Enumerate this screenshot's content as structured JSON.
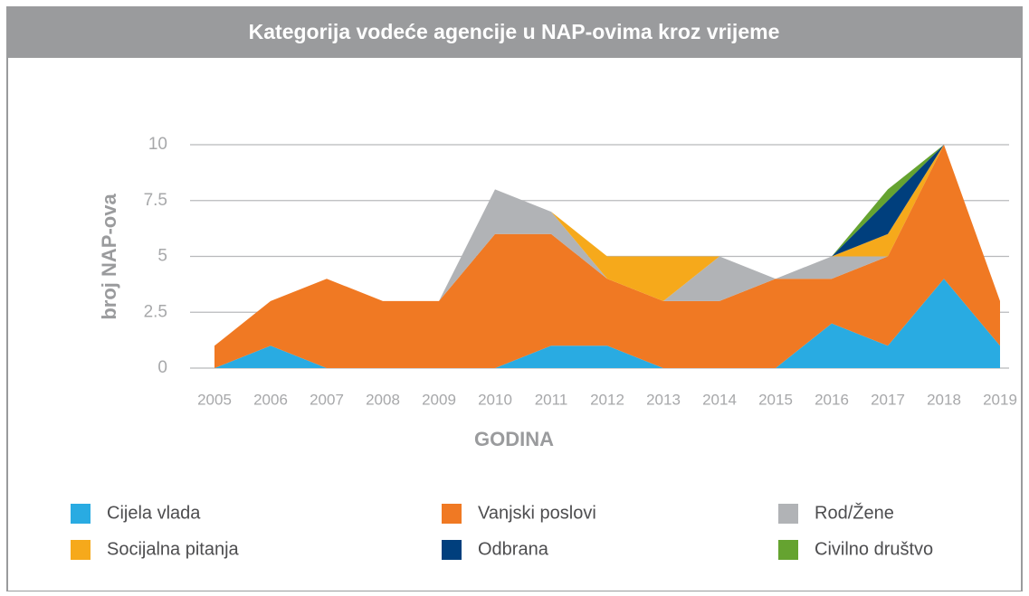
{
  "chart_data": {
    "type": "stacked-area",
    "title": "Kategorija vodeće agencije u NAP-ovima kroz vrijeme",
    "xlabel": "GODINA",
    "ylabel": "broj NAP-ova",
    "categories": [
      "2005",
      "2006",
      "2007",
      "2008",
      "2009",
      "2010",
      "2011",
      "2012",
      "2013",
      "2014",
      "2015",
      "2016",
      "2017",
      "2018",
      "2019"
    ],
    "ylim": [
      0,
      10
    ],
    "yticks": [
      0,
      2.5,
      5,
      7.5,
      10
    ],
    "grid": true,
    "series": [
      {
        "name": "Cijela vlada",
        "color": "#29abe2",
        "values": [
          0,
          1,
          0,
          0,
          0,
          0,
          1,
          1,
          0,
          0,
          0,
          2,
          1,
          4,
          1
        ]
      },
      {
        "name": "Vanjski poslovi",
        "color": "#f07923",
        "values": [
          1,
          2,
          4,
          3,
          3,
          6,
          5,
          3,
          3,
          3,
          4,
          2,
          4,
          6,
          2
        ]
      },
      {
        "name": "Rod/Žene",
        "color": "#b1b3b6",
        "values": [
          0,
          0,
          0,
          0,
          0,
          2,
          1,
          0,
          0,
          2,
          0,
          1,
          0,
          0,
          0
        ]
      },
      {
        "name": "Socijalna pitanja",
        "color": "#f6a91b",
        "values": [
          0,
          0,
          0,
          0,
          0,
          0,
          0,
          1,
          2,
          0,
          0,
          0,
          1,
          0,
          0
        ]
      },
      {
        "name": "Odbrana",
        "color": "#003f7d",
        "values": [
          0,
          0,
          0,
          0,
          0,
          0,
          0,
          0,
          0,
          0,
          0,
          0,
          1.5,
          0,
          0
        ]
      },
      {
        "name": "Civilno društvo",
        "color": "#65a330",
        "values": [
          0,
          0,
          0,
          0,
          0,
          0,
          0,
          0,
          0,
          0,
          0,
          0,
          0.5,
          0,
          0
        ]
      }
    ]
  }
}
